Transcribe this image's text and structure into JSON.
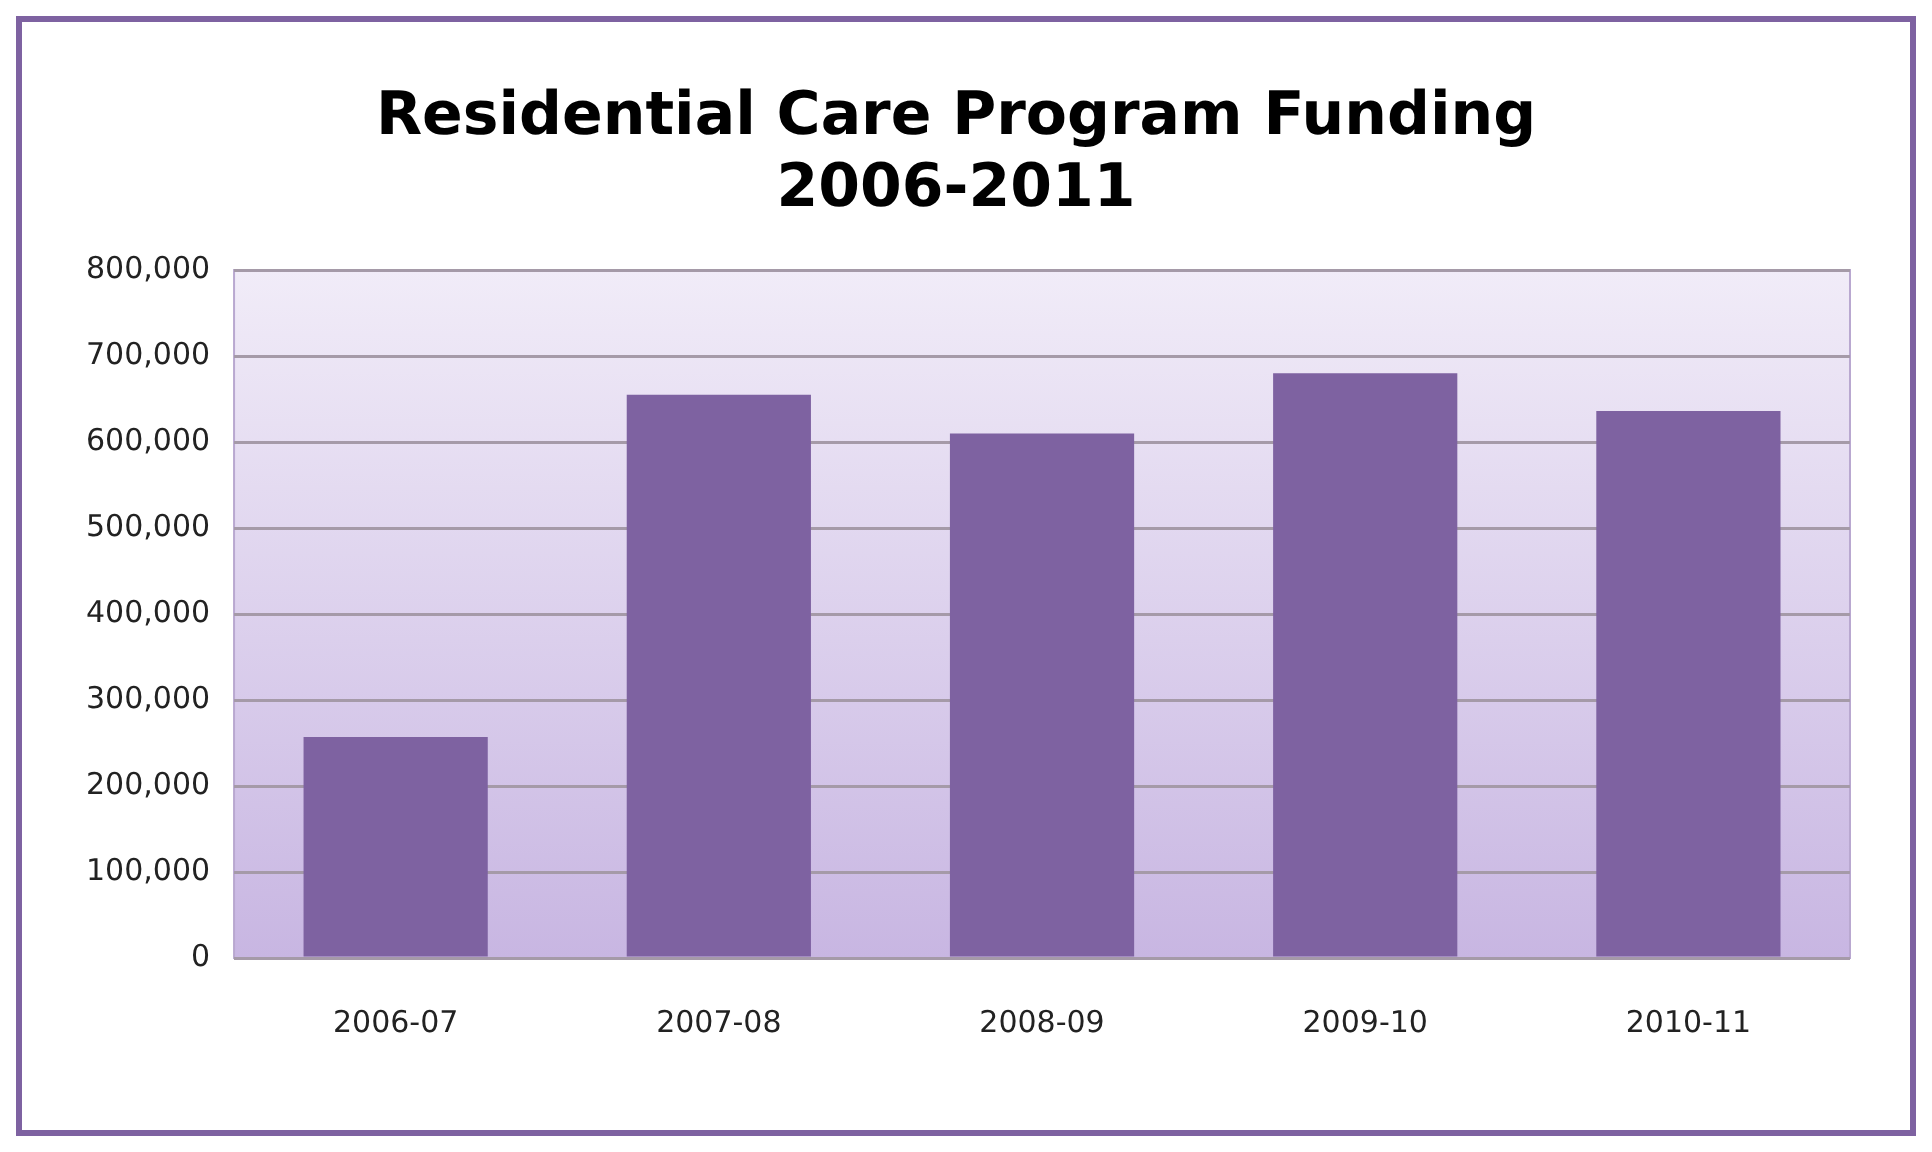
{
  "chart_data": {
    "type": "bar",
    "title": [
      "Residential Care Program Funding",
      "2006-2011"
    ],
    "categories": [
      "2006-07",
      "2007-08",
      "2008-09",
      "2009-10",
      "2010-11"
    ],
    "values": [
      257000,
      655000,
      610000,
      680000,
      636000
    ],
    "color": "#7e62a1",
    "ylim": [
      0,
      800000
    ],
    "yticks": [
      {
        "value": 0,
        "label": "0"
      },
      {
        "value": 100000,
        "label": "100,000"
      },
      {
        "value": 200000,
        "label": "200,000"
      },
      {
        "value": 300000,
        "label": "300,000"
      },
      {
        "value": 400000,
        "label": "400,000"
      },
      {
        "value": 500000,
        "label": "500,000"
      },
      {
        "value": 600000,
        "label": "600,000"
      },
      {
        "value": 700000,
        "label": "700,000"
      },
      {
        "value": 800000,
        "label": "800,000"
      }
    ],
    "grid": "y"
  }
}
